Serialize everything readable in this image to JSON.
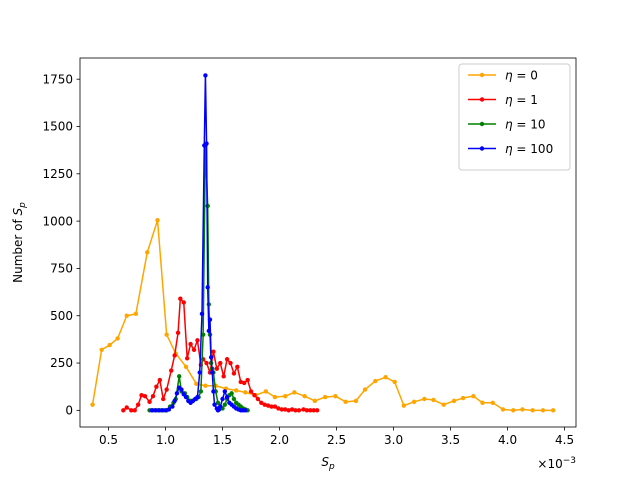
{
  "chart_data": {
    "type": "line",
    "xlabel_base": "S",
    "xlabel_sub": "p",
    "ylabel_prefix": "Number of ",
    "ylabel_base": "S",
    "ylabel_sub": "p",
    "x_multiplier_text": "×10",
    "x_multiplier_exp": "−3",
    "xlim": [
      0.25,
      4.6
    ],
    "ylim": [
      -88,
      1862
    ],
    "x_ticks": [
      0.5,
      1.0,
      1.5,
      2.0,
      2.5,
      3.0,
      3.5,
      4.0,
      4.5
    ],
    "x_tick_labels": [
      "0.5",
      "1.0",
      "1.5",
      "2.0",
      "2.5",
      "3.0",
      "3.5",
      "4.0",
      "4.5"
    ],
    "y_ticks": [
      0,
      250,
      500,
      750,
      1000,
      1250,
      1500,
      1750
    ],
    "y_tick_labels": [
      "0",
      "250",
      "500",
      "750",
      "1000",
      "1250",
      "1500",
      "1750"
    ],
    "grid": false,
    "legend_position": "top-right",
    "series": [
      {
        "name_prefix": "η = ",
        "name_value": "0",
        "color": "#ffa500",
        "x": [
          0.36,
          0.44,
          0.51,
          0.58,
          0.66,
          0.74,
          0.84,
          0.93,
          1.01,
          1.09,
          1.18,
          1.27,
          1.35,
          1.44,
          1.53,
          1.62,
          1.7,
          1.79,
          1.88,
          1.96,
          2.05,
          2.13,
          2.22,
          2.31,
          2.4,
          2.49,
          2.58,
          2.67,
          2.75,
          2.84,
          2.93,
          3.01,
          3.09,
          3.18,
          3.27,
          3.35,
          3.44,
          3.53,
          3.61,
          3.7,
          3.78,
          3.87,
          3.96,
          4.05,
          4.13,
          4.22,
          4.31,
          4.4
        ],
        "y": [
          30,
          320,
          345,
          380,
          500,
          510,
          835,
          1005,
          400,
          300,
          230,
          140,
          130,
          130,
          115,
          105,
          95,
          80,
          100,
          70,
          75,
          95,
          75,
          50,
          70,
          75,
          45,
          50,
          110,
          155,
          175,
          150,
          25,
          45,
          60,
          55,
          30,
          50,
          65,
          75,
          40,
          40,
          5,
          0,
          5,
          0,
          0,
          0
        ]
      },
      {
        "name_prefix": "η = ",
        "name_value": "1",
        "color": "#ff0000",
        "x": [
          0.63,
          0.66,
          0.7,
          0.73,
          0.76,
          0.79,
          0.82,
          0.86,
          0.89,
          0.92,
          0.95,
          0.98,
          1.01,
          1.05,
          1.08,
          1.11,
          1.13,
          1.16,
          1.19,
          1.22,
          1.25,
          1.28,
          1.31,
          1.33,
          1.36,
          1.39,
          1.42,
          1.45,
          1.48,
          1.51,
          1.54,
          1.57,
          1.6,
          1.63,
          1.66,
          1.69,
          1.72,
          1.75,
          1.78,
          1.81,
          1.84,
          1.87,
          1.9,
          1.93,
          1.96,
          1.99,
          2.02,
          2.05,
          2.08,
          2.11,
          2.14,
          2.17,
          2.21,
          2.24,
          2.27,
          2.3,
          2.33
        ],
        "y": [
          0,
          15,
          0,
          0,
          30,
          80,
          75,
          45,
          75,
          125,
          160,
          60,
          110,
          210,
          290,
          410,
          590,
          570,
          275,
          350,
          320,
          370,
          240,
          270,
          250,
          200,
          310,
          220,
          250,
          180,
          270,
          250,
          195,
          230,
          150,
          145,
          160,
          100,
          80,
          60,
          40,
          30,
          25,
          20,
          20,
          10,
          5,
          5,
          0,
          5,
          0,
          0,
          5,
          0,
          0,
          0,
          0
        ]
      },
      {
        "name_prefix": "η = ",
        "name_value": "10",
        "color": "#008000",
        "x": [
          0.86,
          0.89,
          0.92,
          0.95,
          0.98,
          1.01,
          1.04,
          1.07,
          1.09,
          1.12,
          1.14,
          1.17,
          1.19,
          1.22,
          1.24,
          1.27,
          1.29,
          1.31,
          1.33,
          1.35,
          1.37,
          1.38,
          1.39,
          1.4,
          1.41,
          1.42,
          1.44,
          1.46,
          1.48,
          1.5,
          1.52,
          1.54,
          1.56,
          1.58,
          1.6,
          1.62,
          1.64,
          1.66,
          1.68,
          1.7,
          1.72
        ],
        "y": [
          0,
          0,
          0,
          0,
          0,
          0,
          20,
          40,
          60,
          180,
          100,
          90,
          70,
          50,
          50,
          60,
          70,
          100,
          400,
          1400,
          1080,
          560,
          400,
          250,
          220,
          200,
          100,
          40,
          20,
          10,
          30,
          60,
          80,
          90,
          60,
          40,
          30,
          20,
          10,
          5,
          0
        ]
      },
      {
        "name_prefix": "η = ",
        "name_value": "100",
        "color": "#0000ff",
        "x": [
          0.88,
          0.91,
          0.94,
          0.97,
          1.0,
          1.03,
          1.06,
          1.08,
          1.1,
          1.12,
          1.14,
          1.16,
          1.18,
          1.2,
          1.22,
          1.24,
          1.26,
          1.28,
          1.3,
          1.32,
          1.34,
          1.35,
          1.36,
          1.37,
          1.38,
          1.39,
          1.4,
          1.41,
          1.42,
          1.43,
          1.45,
          1.46,
          1.47,
          1.48,
          1.5,
          1.52,
          1.54,
          1.56,
          1.58,
          1.6,
          1.62,
          1.64,
          1.66,
          1.68,
          1.7
        ],
        "y": [
          0,
          0,
          0,
          0,
          0,
          5,
          20,
          50,
          90,
          120,
          110,
          85,
          70,
          50,
          40,
          50,
          60,
          70,
          200,
          510,
          1400,
          1770,
          1410,
          650,
          420,
          480,
          280,
          200,
          100,
          30,
          10,
          0,
          5,
          20,
          60,
          100,
          70,
          40,
          30,
          20,
          10,
          5,
          0,
          0,
          0
        ]
      }
    ]
  }
}
